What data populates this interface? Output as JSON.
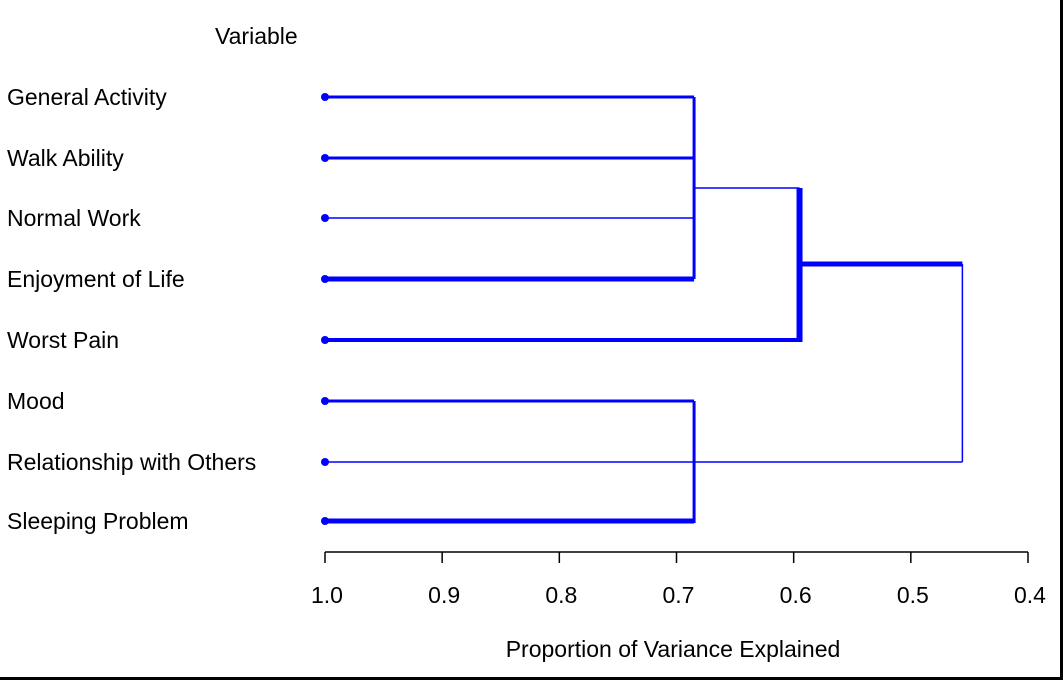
{
  "chart_data": {
    "type": "dendrogram",
    "header_label": "Variable",
    "xlabel": "Proportion of Variance Explained",
    "xlim": [
      1.0,
      0.4
    ],
    "x_reversed": true,
    "ticks": [
      "1.0",
      "0.9",
      "0.8",
      "0.7",
      "0.6",
      "0.5",
      "0.4"
    ],
    "tick_values": [
      1.0,
      0.9,
      0.8,
      0.7,
      0.6,
      0.5,
      0.4
    ],
    "variables": [
      "General Activity",
      "Walk Ability",
      "Normal Work",
      "Enjoyment of Life",
      "Worst Pain",
      "Mood",
      "Relationship with Others",
      "Sleeping Problem"
    ],
    "merges": [
      {
        "members": [
          "General Activity",
          "Walk Ability",
          "Normal Work",
          "Enjoyment of Life"
        ],
        "value": 0.685
      },
      {
        "members": [
          "Mood",
          "Relationship with Others",
          "Sleeping Problem"
        ],
        "value": 0.685
      },
      {
        "members": [
          "General Activity",
          "Walk Ability",
          "Normal Work",
          "Enjoyment of Life",
          "Worst Pain"
        ],
        "value": 0.595
      },
      {
        "members": [
          "all"
        ],
        "value": 0.456
      }
    ],
    "line_color": "#0000ff",
    "grid": false
  }
}
